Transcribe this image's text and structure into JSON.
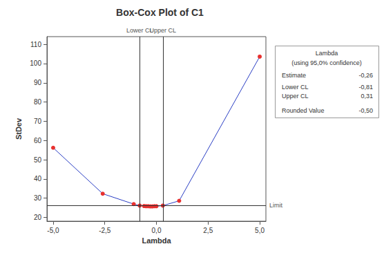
{
  "chart_data": {
    "type": "line",
    "title": "Box-Cox Plot of C1",
    "x_label": "Lambda",
    "y_label": "StDev",
    "x": [
      -5,
      -2.6,
      -1.1,
      -0.81,
      -0.6,
      -0.5,
      -0.4,
      -0.3,
      -0.2,
      -0.1,
      0,
      0.31,
      1.1,
      5
    ],
    "values": [
      56.2,
      32.3,
      26.9,
      26.1,
      25.9,
      25.8,
      25.8,
      25.7,
      25.7,
      25.8,
      25.8,
      26.1,
      28.6,
      103.6
    ],
    "color": "#2b3fc4",
    "colors": [
      "#e8312f",
      "#e8312f",
      "#e8312f",
      "#e8312f",
      "#e8312f",
      "#e8312f",
      "#e8312f",
      "#e8312f",
      "#e8312f",
      "#e8312f",
      "#e8312f",
      "#e8312f",
      "#e8312f",
      "#e8312f"
    ],
    "marker": "circle",
    "line_style": "solid",
    "xlim": [
      -5.3,
      5.3
    ],
    "xticks": [
      {
        "value": -5,
        "label": "-5,0"
      },
      {
        "value": -2.5,
        "label": "-2,5"
      },
      {
        "value": 0,
        "label": "0,0"
      },
      {
        "value": 2.5,
        "label": "2,5"
      },
      {
        "value": 5,
        "label": "5,0"
      }
    ],
    "ylim": [
      18,
      114
    ],
    "yticks": [
      20,
      30,
      40,
      50,
      60,
      70,
      80,
      90,
      100,
      110
    ],
    "grid": false,
    "reference_lines": [
      {
        "axis": "x",
        "value": -0.81,
        "label": "Lower CL"
      },
      {
        "axis": "x",
        "value": 0.31,
        "label": "Upper CL"
      },
      {
        "axis": "y",
        "value": 26.1,
        "label": "Limit"
      }
    ],
    "info_box": {
      "title": "Lambda",
      "subtitle": "(using 95,0% confidence)",
      "rows": [
        {
          "label": "Estimate",
          "value": "-0,26"
        },
        {
          "label": "Lower CL",
          "value": "-0,81"
        },
        {
          "label": "Upper CL",
          "value": "0,31"
        },
        {
          "label": "Rounded Value",
          "value": "-0,50"
        }
      ]
    }
  }
}
